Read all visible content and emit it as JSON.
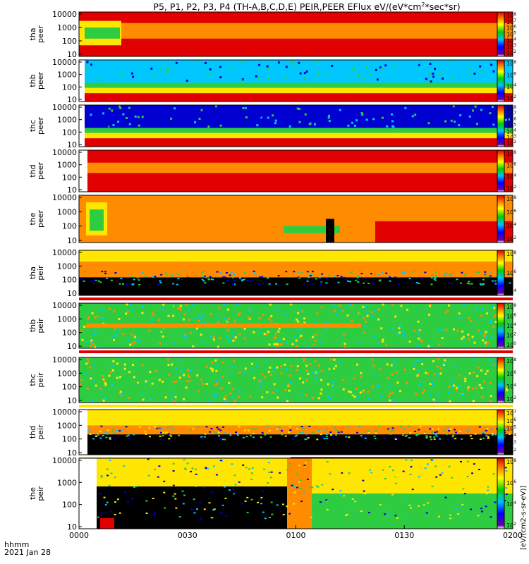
{
  "title": "P5, P1, P2, P3, P4 (TH-A,B,C,D,E) PEIR,PEER EFlux eV/(eV*cm",
  "title_sup": "2",
  "title_end": "*sec*sr)",
  "x_axis": {
    "start_label": "hhmm",
    "date_label": "2021 Jan 28",
    "ticks": [
      "0000",
      "0030",
      "0100",
      "0130",
      "0200"
    ],
    "tick_minutes": [
      0,
      30,
      60,
      90,
      120
    ]
  },
  "colorbar_unit_label": "[eV/(cm2-s-sr-eV)]",
  "colors": {
    "red": "#e00000",
    "orange": "#ff8c00",
    "yellow": "#ffe600",
    "green": "#2ecc40",
    "cyan": "#00c8ff",
    "blue": "#0000d0",
    "black": "#000000",
    "white": "#ffffff"
  },
  "chart_data": [
    {
      "type": "heatmap",
      "name": "tha",
      "ylabel_line1": "tha",
      "ylabel_line2": "peer",
      "yticks": [
        "10000",
        "1000",
        "100",
        "10"
      ],
      "cbar_ticks": [
        "10^8",
        "10^7",
        "10^6",
        "10^5",
        "10^4",
        "10^3",
        "10^2"
      ],
      "mode": "peer_a",
      "status_bar": null
    },
    {
      "type": "heatmap",
      "name": "thb",
      "ylabel_line1": "thb",
      "ylabel_line2": "peer",
      "yticks": [
        "10000",
        "1000",
        "100",
        "10"
      ],
      "cbar_ticks": [
        "10^8",
        "10^6",
        "10^4",
        "10^2"
      ],
      "mode": "peer_sw",
      "status_bar": null
    },
    {
      "type": "heatmap",
      "name": "thc",
      "ylabel_line1": "thc",
      "ylabel_line2": "peer",
      "yticks": [
        "10000",
        "1000",
        "100",
        "10"
      ],
      "cbar_ticks": [
        "10^8",
        "10^7",
        "10^6",
        "10^5",
        "10^4",
        "10^3",
        "10^2"
      ],
      "mode": "peer_sw2",
      "status_bar": null
    },
    {
      "type": "heatmap",
      "name": "thd",
      "ylabel_line1": "thd",
      "ylabel_line2": "peer",
      "yticks": [
        "10000",
        "1000",
        "100",
        "10"
      ],
      "cbar_ticks": [
        "10^8",
        "10^6",
        "10^4",
        "10^2"
      ],
      "mode": "peer_d",
      "status_bar": null
    },
    {
      "type": "heatmap",
      "name": "the",
      "ylabel_line1": "the",
      "ylabel_line2": "peer",
      "yticks": [
        "10000",
        "1000",
        "100",
        "10"
      ],
      "cbar_ticks": [
        "10^8",
        "10^6",
        "10^4",
        "10^2"
      ],
      "mode": "peer_e",
      "status_bar": null
    },
    {
      "type": "heatmap",
      "name": "tha",
      "ylabel_line1": "tha",
      "ylabel_line2": "peir",
      "yticks": [
        "10000",
        "1000",
        "100",
        "10"
      ],
      "cbar_ticks": [
        "10^8",
        "10^6",
        "10^4"
      ],
      "mode": "peir_a",
      "status_bar": "red"
    },
    {
      "type": "heatmap",
      "name": "thb",
      "ylabel_line1": "thb",
      "ylabel_line2": "peir",
      "yticks": [
        "10000",
        "1000",
        "100",
        "10"
      ],
      "cbar_ticks": [
        "10^8",
        "10^6",
        "10^4",
        "10^2",
        "10^0"
      ],
      "mode": "peir_b",
      "status_bar": "red"
    },
    {
      "type": "heatmap",
      "name": "thc",
      "ylabel_line1": "thc",
      "ylabel_line2": "peir",
      "yticks": [
        "10000",
        "1000",
        "100",
        "10"
      ],
      "cbar_ticks": [
        "10^8",
        "10^6",
        "10^4",
        "10^2"
      ],
      "mode": "peir_c",
      "status_bar": "yellow"
    },
    {
      "type": "heatmap",
      "name": "thd",
      "ylabel_line1": "thd",
      "ylabel_line2": "peir",
      "yticks": [
        "10000",
        "1000",
        "100",
        "10"
      ],
      "cbar_ticks": [
        "10^7",
        "10^6",
        "10^5",
        "10^4",
        "10^3",
        "10^2"
      ],
      "mode": "peir_d",
      "status_bar": "yellow-red"
    },
    {
      "type": "heatmap",
      "name": "the",
      "ylabel_line1": "the",
      "ylabel_line2": "peir",
      "yticks": [
        "10000",
        "1000",
        "100",
        "10"
      ],
      "cbar_ticks": [
        "10^8",
        "10^6",
        "10^4",
        "10^2"
      ],
      "mode": "peir_e",
      "status_bar": null
    }
  ]
}
